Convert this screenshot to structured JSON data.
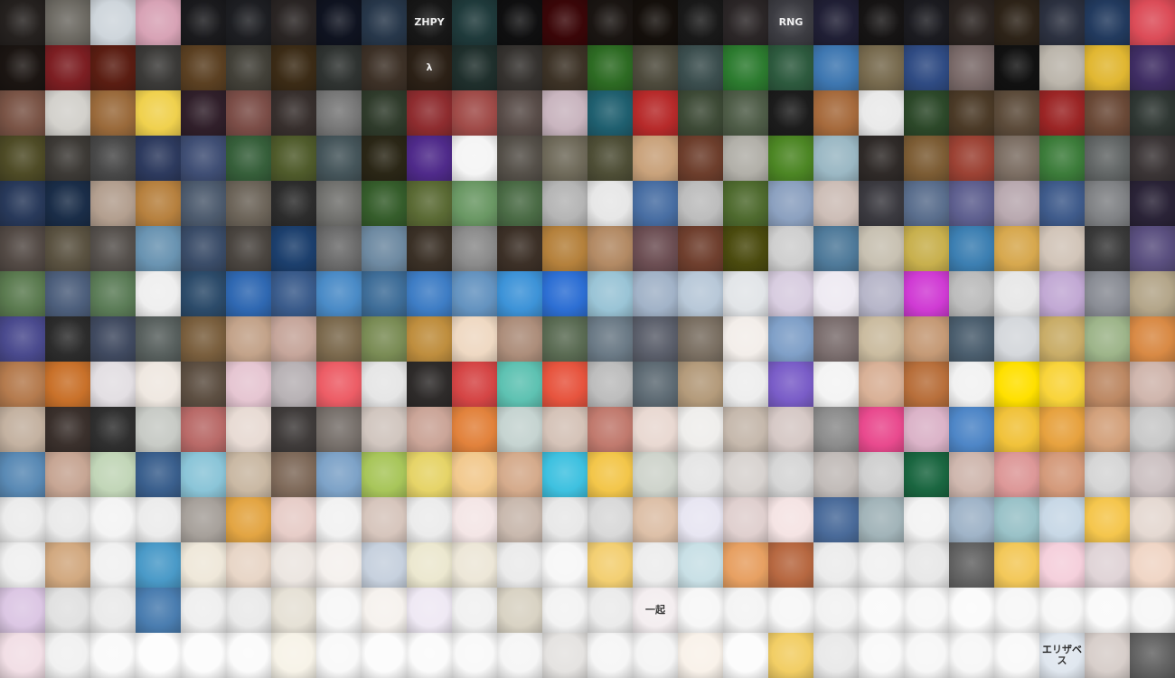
{
  "mosaic": {
    "rows": [
      [
        "#25211f",
        "#6d6a63",
        "#cfd6dc",
        "#d8a3b6",
        "#1a1a1d",
        "#1d1e22",
        "#2a2524",
        "#0f1320",
        "#27374a",
        "#171717",
        "#1f3a3b",
        "#0f0f10",
        "#3a0608",
        "#1a1512",
        "#140f0b",
        "#191919",
        "#2b2627",
        "#3c3c42",
        "#201f35",
        "#161414",
        "#1b1b20",
        "#2b2421",
        "#2d2318",
        "#2c3140",
        "#223a5e",
        "#dc4c58"
      ],
      [
        "#1b1512",
        "#7c1e22",
        "#5a1d12",
        "#3b3a38",
        "#5b4022",
        "#424038",
        "#3b2b16",
        "#2f3331",
        "#3d3127",
        "#2b2016",
        "#1f2f2c",
        "#35322f",
        "#3c3226",
        "#2d6b23",
        "#4d4a3c",
        "#3b4e4e",
        "#2c7b2f",
        "#2d5a3e",
        "#3e77b1",
        "#776a4e",
        "#2f4b83",
        "#7a6a69",
        "#111111",
        "#bcb6ac",
        "#e1b732",
        "#3f2d63"
      ],
      [
        "#7a5446",
        "#d3d1cc",
        "#9a6a3b",
        "#f0d14e",
        "#301f2a",
        "#7b4d47",
        "#372f2d",
        "#777777",
        "#2f3b2b",
        "#8e2c2f",
        "#a04b48",
        "#584c48",
        "#c9b5bf",
        "#1f5f6f",
        "#b72a2a",
        "#3d4a36",
        "#4e5c47",
        "#1c1c1c",
        "#a66a3c",
        "#eaeaea",
        "#2c4829",
        "#4b3a27",
        "#5c4b3a",
        "#9b2525",
        "#6a4937",
        "#2f3733"
      ],
      [
        "#4e4b26",
        "#3d3a36",
        "#484848",
        "#2d3a5e",
        "#3f4e74",
        "#365f3a",
        "#4f5b2b",
        "#45555a",
        "#2a2616",
        "#4f2a8a",
        "#f5f5f5",
        "#555049",
        "#6f6a5a",
        "#4e4e36",
        "#c9a27b",
        "#6d3e2c",
        "#b2b0a9",
        "#4c8624",
        "#9bb8c4",
        "#2f2a28",
        "#7c5c34",
        "#9c4234",
        "#7c6e63",
        "#3c7c3a",
        "#626666",
        "#3b3536"
      ],
      [
        "#28395a",
        "#1a2d48",
        "#b39f8f",
        "#b7813f",
        "#4d5b6e",
        "#6c6459",
        "#2c2c2c",
        "#71716e",
        "#355d2b",
        "#5a6a34",
        "#6a9864",
        "#4a6b45",
        "#b5b5b5",
        "#e7e7e7",
        "#486ea3",
        "#bdbdbd",
        "#4e6a2e",
        "#8ca1c0",
        "#cdbeb7",
        "#3b3a40",
        "#5a6e8d",
        "#5e5f8f",
        "#b9a9b0",
        "#3f5b8b",
        "#808285",
        "#2a2337"
      ],
      [
        "#534a45",
        "#5a5241",
        "#55504c",
        "#6a94b2",
        "#3a4c68",
        "#4a4540",
        "#1c3f6d",
        "#6b6b6b",
        "#6e8aa2",
        "#3a3026",
        "#8b8b8b",
        "#3c3027",
        "#b5813c",
        "#b38a64",
        "#6c4e53",
        "#6f3f2e",
        "#4a4a0e",
        "#cfcfcf",
        "#4f7a9a",
        "#c8c1b2",
        "#c8b04d",
        "#3c7fb2",
        "#d7a84e",
        "#d2c5b9",
        "#3a3a3a",
        "#5a4f7f"
      ],
      [
        "#5b7b50",
        "#4d5f7c",
        "#5b7c57",
        "#efefef",
        "#2c4b6a",
        "#2f68b2",
        "#3a5b8b",
        "#4a8bc7",
        "#3e6d98",
        "#3e7dc5",
        "#6493c0",
        "#3d93d8",
        "#2d6fd4",
        "#9ac4d6",
        "#a2b3c8",
        "#b8c8d8",
        "#e2e5e8",
        "#d8cde0",
        "#eeeaf2",
        "#b7b6c9",
        "#d03bd4",
        "#bcbcbc",
        "#e7e7e7",
        "#c2a9d4",
        "#8a8d95",
        "#b4a68a"
      ],
      [
        "#4a4a8e",
        "#2c2c2c",
        "#404a60",
        "#58605e",
        "#7a5f3e",
        "#c3a38a",
        "#c6a69b",
        "#7c6a4e",
        "#7a8c55",
        "#bf8e3e",
        "#efd9c3",
        "#ad8e7b",
        "#5a6b53",
        "#6b7a86",
        "#5b5f6b",
        "#7a6f62",
        "#f3eeea",
        "#80a0c8",
        "#7b6e6e",
        "#cbbca0",
        "#c59a76",
        "#4b5e6e",
        "#d5d8dc",
        "#c9ad68",
        "#9eb58a",
        "#d98a45"
      ],
      [
        "#b57b4e",
        "#c9712a",
        "#e3dfe3",
        "#efe8e1",
        "#5d4f42",
        "#e6c6d2",
        "#b8b2b5",
        "#ed5d66",
        "#e6e6e6",
        "#2e2b2a",
        "#d54545",
        "#5ec2b2",
        "#e7543e",
        "#bdbdbd",
        "#5e6b74",
        "#b49b7b",
        "#eeeeee",
        "#7a5dc8",
        "#f4f4f4",
        "#d9b197",
        "#b86f3b",
        "#f2f2f2",
        "#ffe000",
        "#f9d43a",
        "#bd8964",
        "#d0b6ad"
      ],
      [
        "#c4b2a1",
        "#3a302c",
        "#2f2f2f",
        "#c8cbc6",
        "#b96a68",
        "#e8dbd4",
        "#3f3b3a",
        "#77706b",
        "#d1c6bf",
        "#cba598",
        "#e2823c",
        "#c6d4d1",
        "#d5c3b8",
        "#c17a6e",
        "#e9d9d2",
        "#efeeec",
        "#c6b9ad",
        "#d6c9c6",
        "#8c8c8c",
        "#e94a8e",
        "#dbb3c8",
        "#4e86c7",
        "#f1c23a",
        "#e7a23f",
        "#d3a17b",
        "#c9c9c9"
      ],
      [
        "#5a8ab5",
        "#c7a694",
        "#c2d6b8",
        "#3a5f8d",
        "#8bc5d8",
        "#cab9a4",
        "#7f6a5a",
        "#7ea3c8",
        "#a8c65a",
        "#e6d468",
        "#f2c98e",
        "#d5ab8c",
        "#3ec1e0",
        "#f3c64a",
        "#cfd4cc",
        "#e5e5e5",
        "#d8d3d0",
        "#d6d6d6",
        "#c2bcb9",
        "#cfcfcf",
        "#1a6640",
        "#cfb7ae",
        "#dd9898",
        "#d49a7b",
        "#d6d6d6",
        "#ccc1c2"
      ],
      [
        "#ececec",
        "#eaeaea",
        "#f4f4f4",
        "#ececec",
        "#a7a19b",
        "#e3a543",
        "#e7cdc8",
        "#f2f2f2",
        "#d7c6bd",
        "#ececec",
        "#f4e6e6",
        "#c9b9ae",
        "#e8e8e8",
        "#d9d9d9",
        "#ddc0a8",
        "#e8e6f2",
        "#e0d0cf",
        "#f5e4e4",
        "#4a6b9a",
        "#a2b4b9",
        "#f3f3f3",
        "#a0b4c8",
        "#9ac2c8",
        "#c8d8e6",
        "#f5c64d",
        "#e5d9d2"
      ],
      [
        "#f0f0f0",
        "#d2a980",
        "#f1f1f1",
        "#4a9ac8",
        "#efe8da",
        "#e8d6c7",
        "#ece6e1",
        "#f5f1ee",
        "#c7d1de",
        "#ece8d0",
        "#ede7d8",
        "#ebebeb",
        "#f7f7f7",
        "#f3cf72",
        "#ededed",
        "#c9e0e6",
        "#e7a062",
        "#b76841",
        "#ececec",
        "#f1f1f1",
        "#e8e8e8",
        "#636363",
        "#f3c859",
        "#f5d0dc",
        "#e0d4d7",
        "#f0d6c6"
      ],
      [
        "#dcc7e4",
        "#e1e1e1",
        "#eaeaea",
        "#4a7db0",
        "#efefef",
        "#eaeaea",
        "#e6e1d6",
        "#f7f7f7",
        "#f6f2ee",
        "#efe9f4",
        "#f1f1f1",
        "#d9d3c4",
        "#f3f3f3",
        "#ebebeb",
        "#f4eef0",
        "#f7f7f7",
        "#f4f4f4",
        "#f7f7f7",
        "#f2f2f2",
        "#fafafa",
        "#f7f7f7",
        "#fbfbfb",
        "#f7f7f7",
        "#f7f7f7",
        "#fafafa",
        "#f7f7f7"
      ],
      [
        "#f2dfe6",
        "#f1f1f1",
        "#fafafa",
        "#fdfdfd",
        "#fcfcfc",
        "#fbfbfb",
        "#f7f3e8",
        "#f9f9f9",
        "#fcfcfc",
        "#fbfbfb",
        "#f9f9f9",
        "#f6f6f6",
        "#e5e3e1",
        "#f6f6f6",
        "#f5f5f5",
        "#f9f2ea",
        "#fcfcfc",
        "#f2ce65",
        "#e9e9e9",
        "#f9f9f9",
        "#f7f7f7",
        "#f7f7f7",
        "#f9f9f9",
        "#e0e7ef",
        "#d8cfcb",
        "#636363"
      ]
    ],
    "text_tiles": [
      {
        "row": 0,
        "col": 9,
        "text": "ZHPY",
        "dark": false
      },
      {
        "row": 0,
        "col": 17,
        "text": "RNG",
        "dark": false
      },
      {
        "row": 1,
        "col": 9,
        "text": "λ",
        "dark": false
      },
      {
        "row": 13,
        "col": 14,
        "text": "一起",
        "dark": true
      },
      {
        "row": 14,
        "col": 23,
        "text": "エリザベス",
        "dark": true
      }
    ]
  }
}
